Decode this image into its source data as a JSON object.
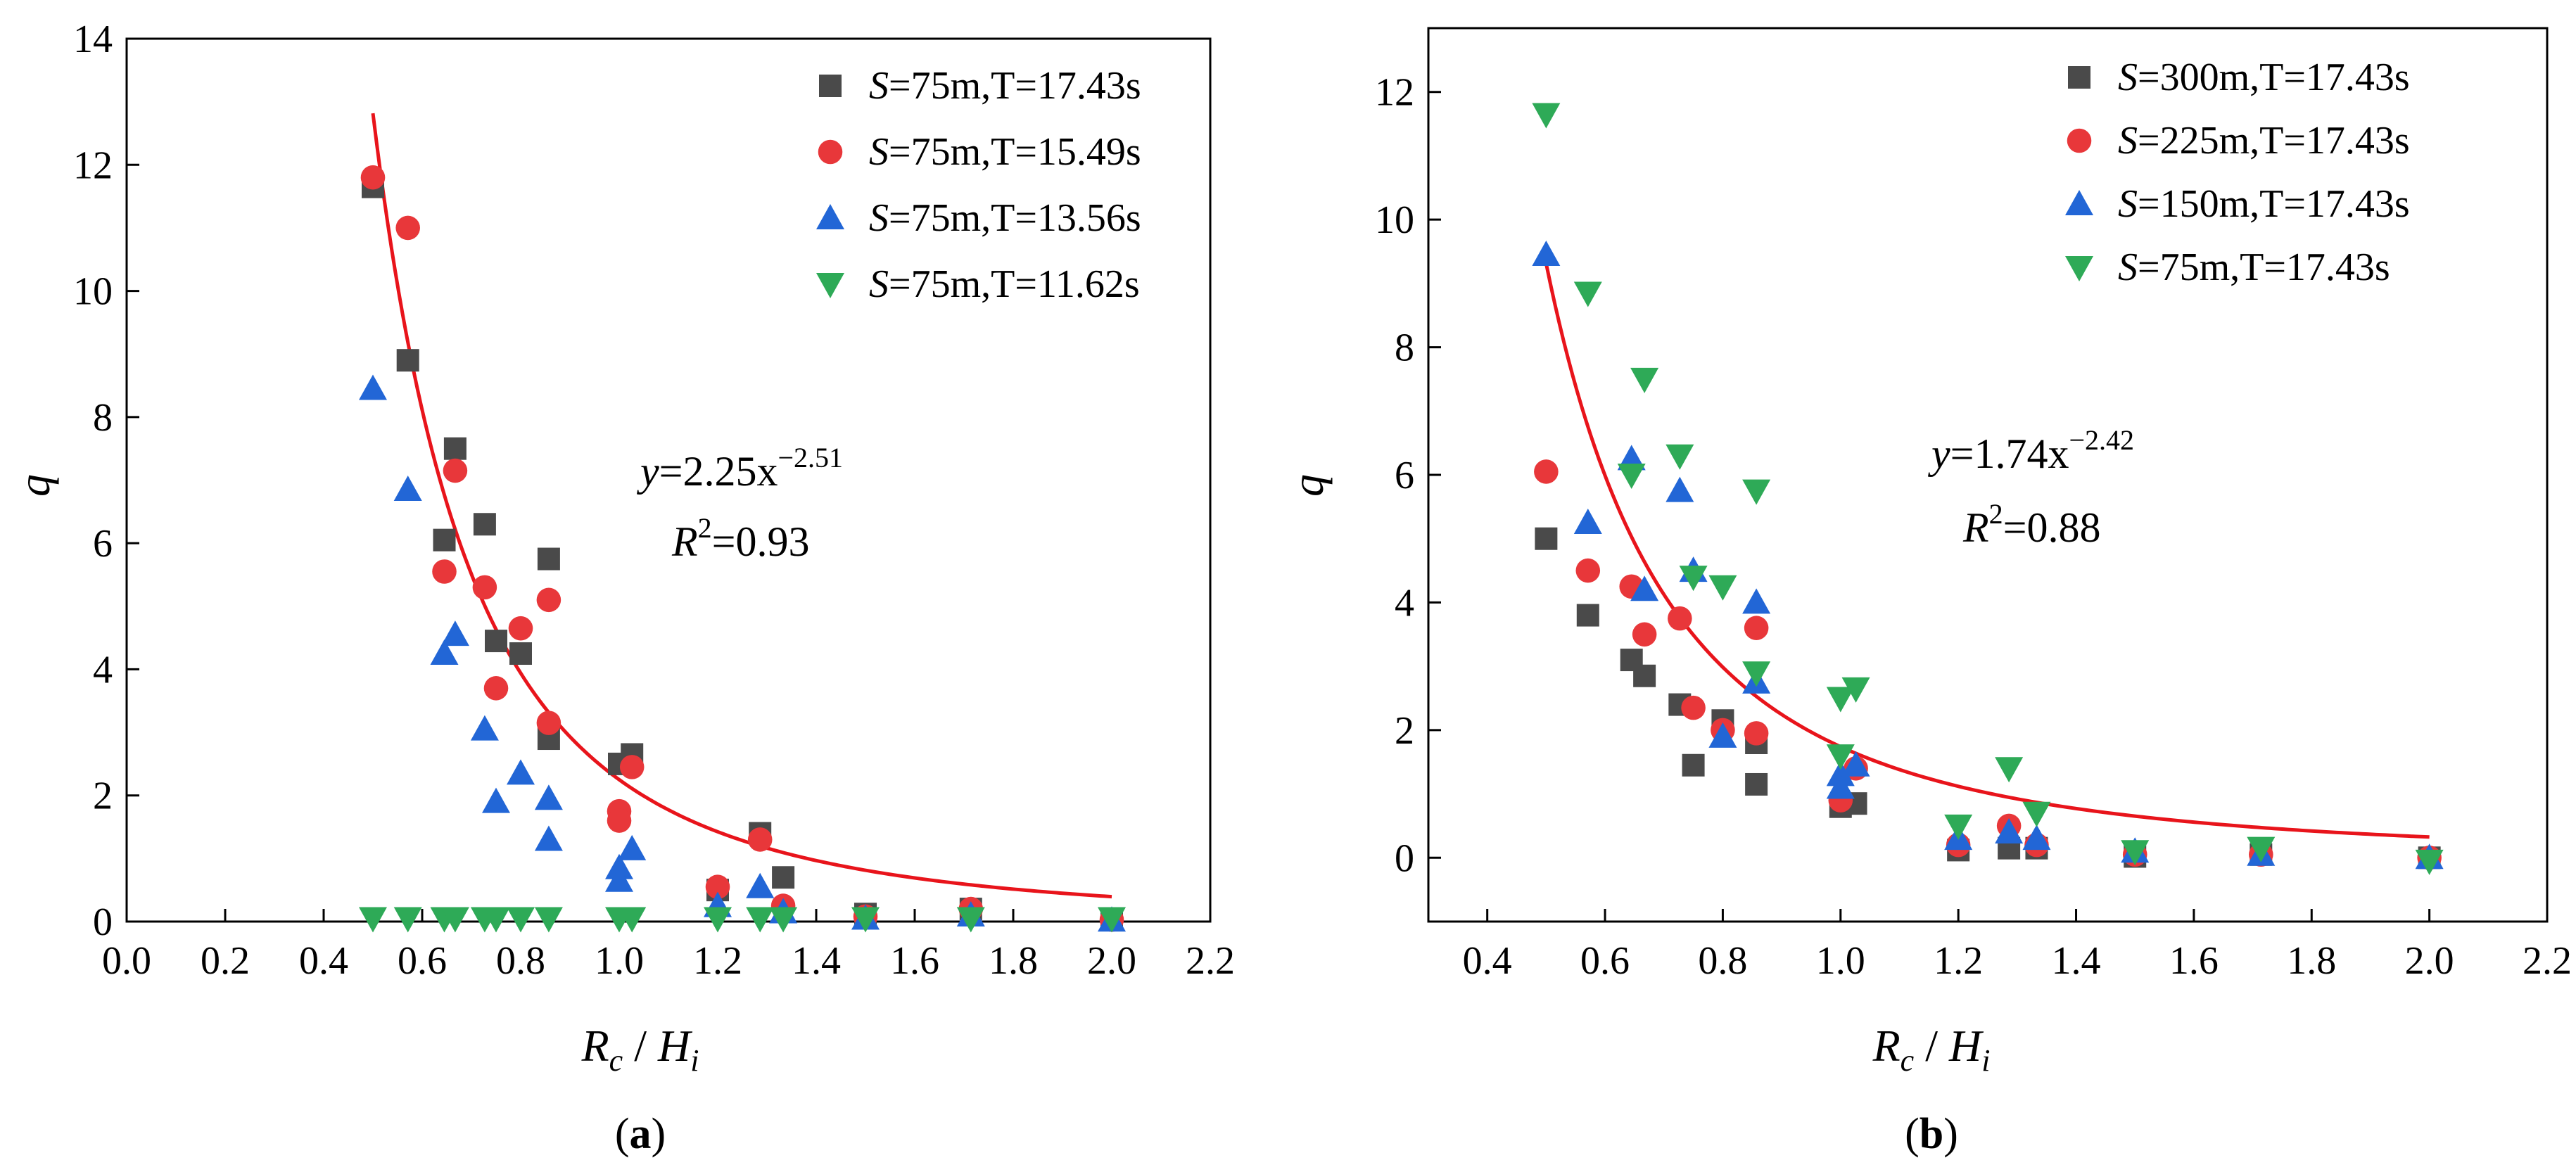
{
  "chart_data": [
    {
      "type": "scatter",
      "panel_label": "(a)",
      "panel_letter": "a",
      "xlabel": {
        "main": "R",
        "sub1": "c",
        "slash": " / ",
        "main2": "H",
        "sub2": "i"
      },
      "ylabel": "q",
      "xlim": [
        0.0,
        2.2
      ],
      "ylim": [
        0,
        14
      ],
      "xticks": [
        "0.0",
        "0.2",
        "0.4",
        "0.6",
        "0.8",
        "1.0",
        "1.2",
        "1.4",
        "1.6",
        "1.8",
        "2.0",
        "2.2"
      ],
      "yticks": [
        "0",
        "2",
        "4",
        "6",
        "8",
        "10",
        "12",
        "14"
      ],
      "grid": false,
      "legend_position": "top-right",
      "fit": {
        "a": 2.25,
        "b": -2.51,
        "x_start": 0.5,
        "x_end": 2.0,
        "color": "#e8141b"
      },
      "equation": {
        "lhs": "y",
        "rhs": "=2.25x",
        "exp": "−2.51",
        "r_label": "R",
        "r_exp": "2",
        "r_val": "=0.93"
      },
      "series": [
        {
          "name": {
            "s": "S",
            "rest": "=75m,T=17.43s"
          },
          "marker": "square",
          "color": "#4a4a4a",
          "points": [
            [
              0.5,
              11.65
            ],
            [
              0.571,
              8.9
            ],
            [
              0.667,
              7.5
            ],
            [
              0.645,
              6.05
            ],
            [
              0.727,
              6.3
            ],
            [
              0.75,
              4.45
            ],
            [
              0.8,
              4.25
            ],
            [
              0.857,
              5.75
            ],
            [
              0.857,
              2.9
            ],
            [
              1.0,
              2.5
            ],
            [
              1.026,
              2.65
            ],
            [
              1.2,
              0.5
            ],
            [
              1.286,
              1.4
            ],
            [
              1.333,
              0.7
            ],
            [
              1.5,
              0.12
            ],
            [
              1.714,
              0.2
            ],
            [
              2.0,
              0.05
            ]
          ]
        },
        {
          "name": {
            "s": "S",
            "rest": "=75m,T=15.49s"
          },
          "marker": "circle",
          "color": "#e8373a",
          "points": [
            [
              0.5,
              11.8
            ],
            [
              0.571,
              11.0
            ],
            [
              0.667,
              7.15
            ],
            [
              0.645,
              5.55
            ],
            [
              0.727,
              5.3
            ],
            [
              0.75,
              3.7
            ],
            [
              0.8,
              4.65
            ],
            [
              0.857,
              5.1
            ],
            [
              0.857,
              3.15
            ],
            [
              1.0,
              1.75
            ],
            [
              1.0,
              1.6
            ],
            [
              1.026,
              2.45
            ],
            [
              1.2,
              0.55
            ],
            [
              1.286,
              1.3
            ],
            [
              1.333,
              0.25
            ],
            [
              1.5,
              0.08
            ],
            [
              1.714,
              0.2
            ],
            [
              2.0,
              0.03
            ]
          ]
        },
        {
          "name": {
            "s": "S",
            "rest": "=75m,T=13.56s"
          },
          "marker": "triangle-up",
          "color": "#2266d6",
          "points": [
            [
              0.5,
              8.45
            ],
            [
              0.571,
              6.85
            ],
            [
              0.667,
              4.55
            ],
            [
              0.645,
              4.25
            ],
            [
              0.727,
              3.05
            ],
            [
              0.75,
              1.9
            ],
            [
              0.8,
              2.35
            ],
            [
              0.857,
              1.95
            ],
            [
              0.857,
              1.3
            ],
            [
              1.0,
              0.85
            ],
            [
              1.0,
              0.65
            ],
            [
              1.026,
              1.15
            ],
            [
              1.2,
              0.25
            ],
            [
              1.286,
              0.55
            ],
            [
              1.333,
              0.15
            ],
            [
              1.5,
              0.05
            ],
            [
              1.714,
              0.1
            ],
            [
              2.0,
              0.02
            ]
          ]
        },
        {
          "name": {
            "s": "S",
            "rest": "=75m,T=11.62s"
          },
          "marker": "triangle-down",
          "color": "#2eaa57",
          "points": [
            [
              0.5,
              0.05
            ],
            [
              0.571,
              0.05
            ],
            [
              0.645,
              0.05
            ],
            [
              0.667,
              0.05
            ],
            [
              0.727,
              0.05
            ],
            [
              0.75,
              0.05
            ],
            [
              0.8,
              0.05
            ],
            [
              0.857,
              0.05
            ],
            [
              1.0,
              0.05
            ],
            [
              1.026,
              0.05
            ],
            [
              1.2,
              0.05
            ],
            [
              1.286,
              0.05
            ],
            [
              1.333,
              0.05
            ],
            [
              1.5,
              0.05
            ],
            [
              1.714,
              0.05
            ],
            [
              2.0,
              0.05
            ]
          ]
        }
      ]
    },
    {
      "type": "scatter",
      "panel_label": "(b)",
      "panel_letter": "b",
      "xlabel": {
        "main": "R",
        "sub1": "c",
        "slash": " / ",
        "main2": "H",
        "sub2": "i"
      },
      "ylabel": "q",
      "xlim": [
        0.3,
        2.2
      ],
      "ylim": [
        -1,
        13
      ],
      "xticks": [
        "0.4",
        "0.6",
        "0.8",
        "1.0",
        "1.2",
        "1.4",
        "1.6",
        "1.8",
        "2.0",
        "2.2"
      ],
      "yticks": [
        "0",
        "2",
        "4",
        "6",
        "8",
        "10",
        "12"
      ],
      "grid": false,
      "legend_position": "top-right",
      "fit": {
        "a": 1.74,
        "b": -2.42,
        "x_start": 0.5,
        "x_end": 2.0,
        "color": "#e8141b"
      },
      "equation": {
        "lhs": "y",
        "rhs": "=1.74x",
        "exp": "−2.42",
        "r_label": "R",
        "r_exp": "2",
        "r_val": "=0.88"
      },
      "series": [
        {
          "name": {
            "s": "S",
            "rest": "=300m,T=17.43s"
          },
          "marker": "square",
          "color": "#4a4a4a",
          "points": [
            [
              0.5,
              5.0
            ],
            [
              0.571,
              3.8
            ],
            [
              0.645,
              3.1
            ],
            [
              0.667,
              2.85
            ],
            [
              0.727,
              2.4
            ],
            [
              0.75,
              1.45
            ],
            [
              0.8,
              2.15
            ],
            [
              0.857,
              1.8
            ],
            [
              0.857,
              1.15
            ],
            [
              1.0,
              0.8
            ],
            [
              1.026,
              0.85
            ],
            [
              1.2,
              0.12
            ],
            [
              1.286,
              0.15
            ],
            [
              1.333,
              0.15
            ],
            [
              1.5,
              0.02
            ],
            [
              1.714,
              0.05
            ],
            [
              2.0,
              0.0
            ]
          ]
        },
        {
          "name": {
            "s": "S",
            "rest": "=225m,T=17.43s"
          },
          "marker": "circle",
          "color": "#e8373a",
          "points": [
            [
              0.5,
              6.05
            ],
            [
              0.571,
              4.5
            ],
            [
              0.645,
              4.25
            ],
            [
              0.667,
              3.5
            ],
            [
              0.727,
              3.75
            ],
            [
              0.75,
              2.35
            ],
            [
              0.8,
              2.0
            ],
            [
              0.857,
              3.6
            ],
            [
              0.857,
              1.95
            ],
            [
              1.0,
              0.9
            ],
            [
              1.026,
              1.4
            ],
            [
              1.2,
              0.2
            ],
            [
              1.286,
              0.5
            ],
            [
              1.333,
              0.2
            ],
            [
              1.5,
              0.05
            ],
            [
              1.714,
              0.05
            ],
            [
              2.0,
              0.0
            ]
          ]
        },
        {
          "name": {
            "s": "S",
            "rest": "=150m,T=17.43s"
          },
          "marker": "triangle-up",
          "color": "#2266d6",
          "points": [
            [
              0.5,
              9.45
            ],
            [
              0.571,
              5.25
            ],
            [
              0.645,
              6.25
            ],
            [
              0.667,
              4.2
            ],
            [
              0.727,
              5.75
            ],
            [
              0.75,
              4.5
            ],
            [
              0.8,
              1.9
            ],
            [
              0.857,
              4.0
            ],
            [
              0.857,
              2.75
            ],
            [
              1.0,
              1.3
            ],
            [
              1.0,
              1.1
            ],
            [
              1.026,
              1.45
            ],
            [
              1.2,
              0.3
            ],
            [
              1.286,
              0.4
            ],
            [
              1.333,
              0.3
            ],
            [
              1.5,
              0.1
            ],
            [
              1.714,
              0.05
            ],
            [
              2.0,
              0.0
            ]
          ]
        },
        {
          "name": {
            "s": "S",
            "rest": "=75m,T=17.43s"
          },
          "marker": "triangle-down",
          "color": "#2eaa57",
          "points": [
            [
              0.5,
              11.65
            ],
            [
              0.571,
              8.85
            ],
            [
              0.645,
              6.0
            ],
            [
              0.667,
              7.5
            ],
            [
              0.727,
              6.3
            ],
            [
              0.75,
              4.4
            ],
            [
              0.8,
              4.25
            ],
            [
              0.857,
              5.75
            ],
            [
              0.857,
              2.9
            ],
            [
              1.0,
              2.5
            ],
            [
              1.0,
              1.6
            ],
            [
              1.026,
              2.65
            ],
            [
              1.2,
              0.5
            ],
            [
              1.286,
              1.4
            ],
            [
              1.333,
              0.7
            ],
            [
              1.5,
              0.1
            ],
            [
              1.714,
              0.15
            ],
            [
              2.0,
              -0.05
            ]
          ]
        }
      ]
    }
  ]
}
